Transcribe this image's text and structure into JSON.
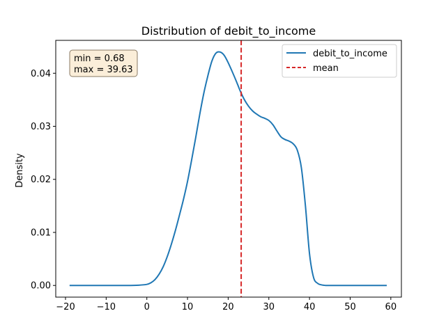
{
  "chart_data": {
    "type": "line",
    "title": "Distribution of debit_to_income",
    "xlabel": "",
    "ylabel": "Density",
    "xlim": [
      -22.4,
      62.6
    ],
    "ylim": [
      -0.0022,
      0.0462
    ],
    "xticks": [
      -20,
      -10,
      0,
      10,
      20,
      30,
      40,
      50,
      60
    ],
    "xtick_labels": [
      "−20",
      "−10",
      "0",
      "10",
      "20",
      "30",
      "40",
      "50",
      "60"
    ],
    "yticks": [
      0.0,
      0.01,
      0.02,
      0.03,
      0.04
    ],
    "ytick_labels": [
      "0.00",
      "0.01",
      "0.02",
      "0.03",
      "0.04"
    ],
    "grid": false,
    "legend_position": "top-right",
    "series": [
      {
        "name": "debit_to_income",
        "color": "#1f77b4",
        "style": "solid",
        "x": [
          -19,
          -10,
          -5,
          -2,
          0,
          1,
          2,
          3,
          4,
          5,
          6,
          7,
          8,
          9,
          10,
          11,
          12,
          13,
          14,
          15,
          16,
          17,
          18,
          19,
          20,
          21,
          22,
          23,
          24,
          25,
          26,
          27,
          28,
          29,
          30,
          31,
          32,
          33,
          34,
          35,
          36,
          37,
          38,
          39,
          40,
          41,
          42,
          43,
          44,
          45,
          50,
          59
        ],
        "y": [
          0,
          0,
          0,
          5e-05,
          0.0002,
          0.0005,
          0.0011,
          0.0021,
          0.0035,
          0.0054,
          0.0077,
          0.0103,
          0.0132,
          0.0162,
          0.0196,
          0.0236,
          0.0278,
          0.0322,
          0.0362,
          0.0395,
          0.0423,
          0.0438,
          0.044,
          0.0434,
          0.042,
          0.0403,
          0.0385,
          0.0366,
          0.035,
          0.0338,
          0.0329,
          0.0323,
          0.0318,
          0.0315,
          0.0311,
          0.0303,
          0.0291,
          0.028,
          0.0275,
          0.0272,
          0.0267,
          0.0255,
          0.0222,
          0.015,
          0.006,
          0.0015,
          0.0004,
          0.0001,
          0,
          0,
          0,
          0
        ]
      },
      {
        "name": "mean",
        "color": "#d62728",
        "style": "dashed",
        "x_value": 23.2
      }
    ],
    "annotation": {
      "lines": [
        "min = 0.68",
        "max = 39.63"
      ],
      "background": "#fbeed9",
      "border": "#8a7a63"
    }
  }
}
